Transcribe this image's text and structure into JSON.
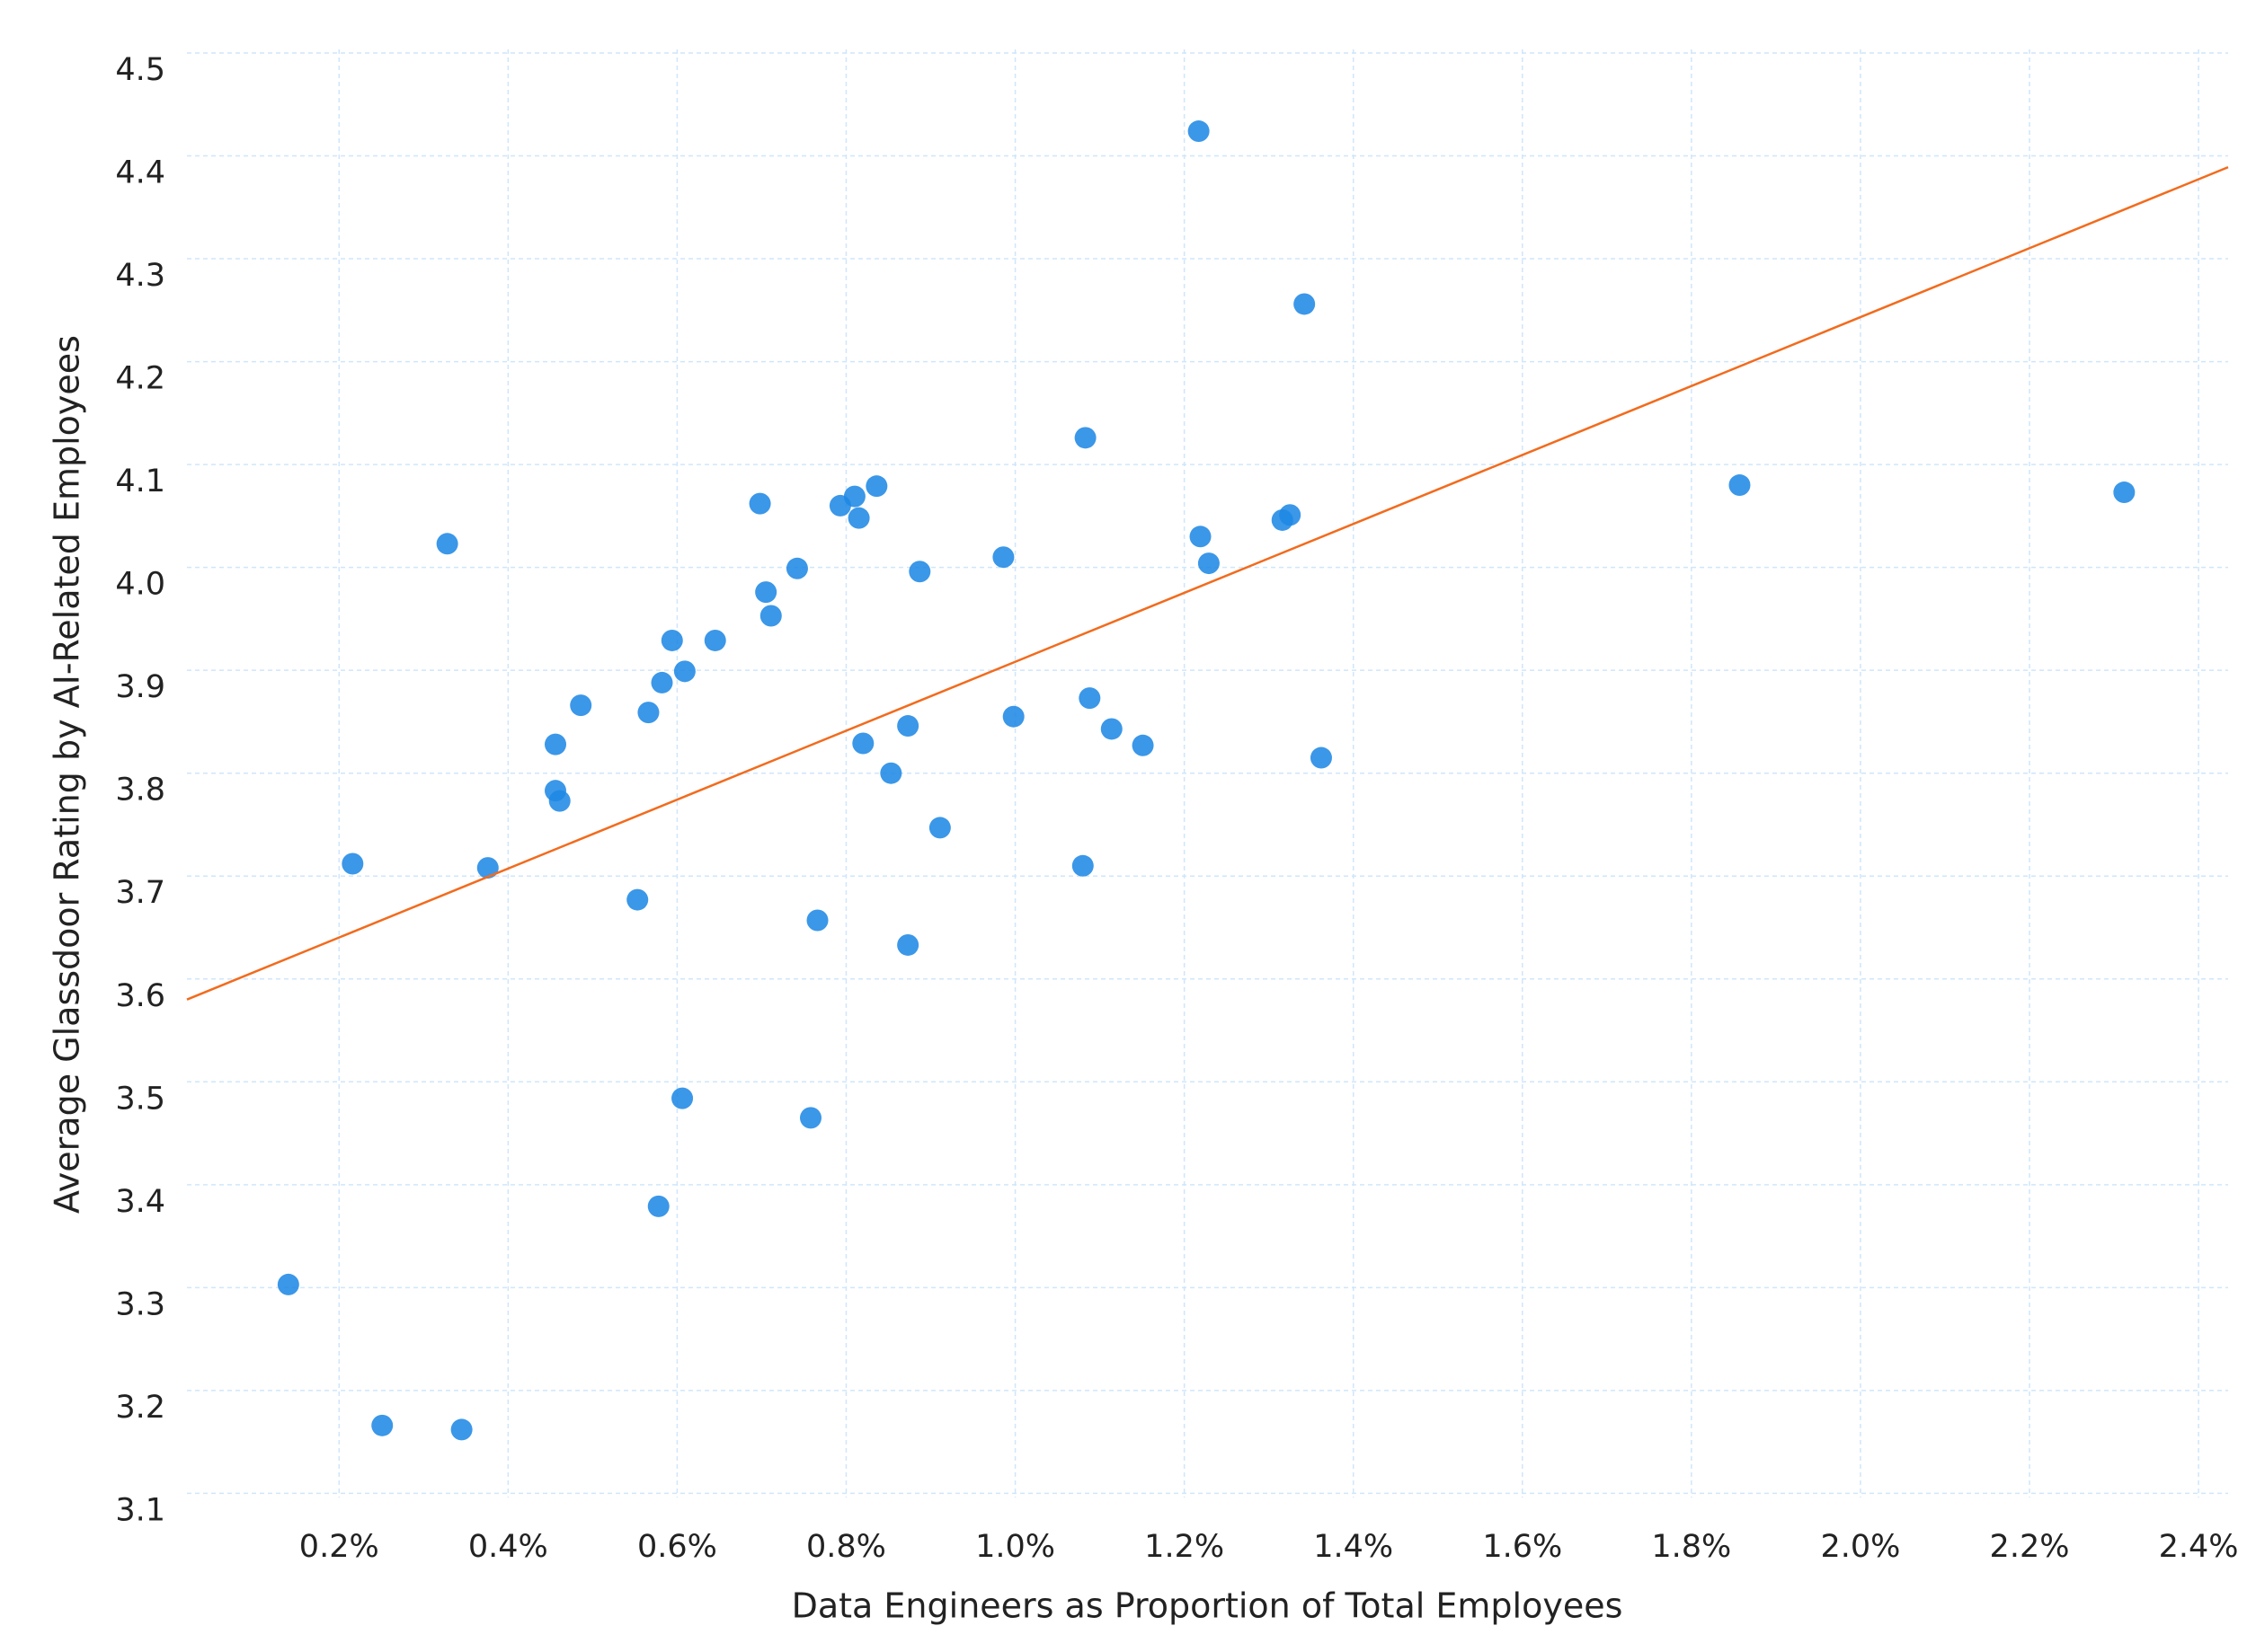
{
  "chart_data": {
    "type": "scatter",
    "x_label": "Data Engineers as Proportion of Total Employees",
    "y_label": "Average Glassdoor Rating by AI-Related Employees",
    "xlim": [
      0.02,
      2.435
    ],
    "ylim": [
      3.096,
      4.5
    ],
    "xticks": [
      {
        "value": 0.2,
        "label": "0.2%"
      },
      {
        "value": 0.4,
        "label": "0.4%"
      },
      {
        "value": 0.6,
        "label": "0.6%"
      },
      {
        "value": 0.8,
        "label": "0.8%"
      },
      {
        "value": 1.0,
        "label": "1.0%"
      },
      {
        "value": 1.2,
        "label": "1.2%"
      },
      {
        "value": 1.4,
        "label": "1.4%"
      },
      {
        "value": 1.6,
        "label": "1.6%"
      },
      {
        "value": 1.8,
        "label": "1.8%"
      },
      {
        "value": 2.0,
        "label": "2.0%"
      },
      {
        "value": 2.2,
        "label": "2.2%"
      },
      {
        "value": 2.4,
        "label": "2.4%"
      }
    ],
    "yticks": [
      3.1,
      3.2,
      3.3,
      3.4,
      3.5,
      3.6,
      3.7,
      3.8,
      3.9,
      {
        "value": 4.0,
        "label": "4.0"
      },
      4.1,
      4.2,
      4.3,
      4.4,
      4.5
    ],
    "grid": true,
    "series": [
      {
        "color": "#1e88e5",
        "x": [
          1.217,
          1.342,
          1.083,
          1.857,
          2.312,
          0.836,
          0.81,
          0.793,
          0.815,
          0.698,
          1.325,
          1.316,
          0.328,
          1.219,
          1.229,
          0.986,
          0.742,
          0.887,
          0.705,
          0.711,
          0.594,
          0.645,
          0.609,
          0.582,
          0.486,
          0.566,
          1.088,
          0.998,
          0.873,
          1.114,
          0.82,
          1.151,
          0.456,
          1.362,
          0.853,
          0.456,
          0.461,
          0.911,
          0.216,
          0.376,
          1.08,
          0.553,
          0.766,
          0.873,
          0.606,
          0.758,
          0.578,
          0.14,
          0.251,
          0.345
        ],
        "values": [
          4.424,
          4.256,
          4.126,
          4.08,
          4.073,
          4.079,
          4.069,
          4.06,
          4.048,
          4.062,
          4.051,
          4.046,
          4.023,
          4.03,
          4.004,
          4.01,
          3.999,
          3.996,
          3.976,
          3.953,
          3.929,
          3.929,
          3.899,
          3.888,
          3.866,
          3.859,
          3.873,
          3.855,
          3.846,
          3.843,
          3.829,
          3.827,
          3.828,
          3.815,
          3.8,
          3.783,
          3.773,
          3.747,
          3.712,
          3.708,
          3.71,
          3.677,
          3.657,
          3.633,
          3.484,
          3.465,
          3.379,
          3.303,
          3.166,
          3.162
        ]
      }
    ],
    "trendline": {
      "color": "#f26b1d",
      "x": [
        0.02,
        2.435
      ],
      "values": [
        3.58,
        4.389
      ]
    }
  }
}
